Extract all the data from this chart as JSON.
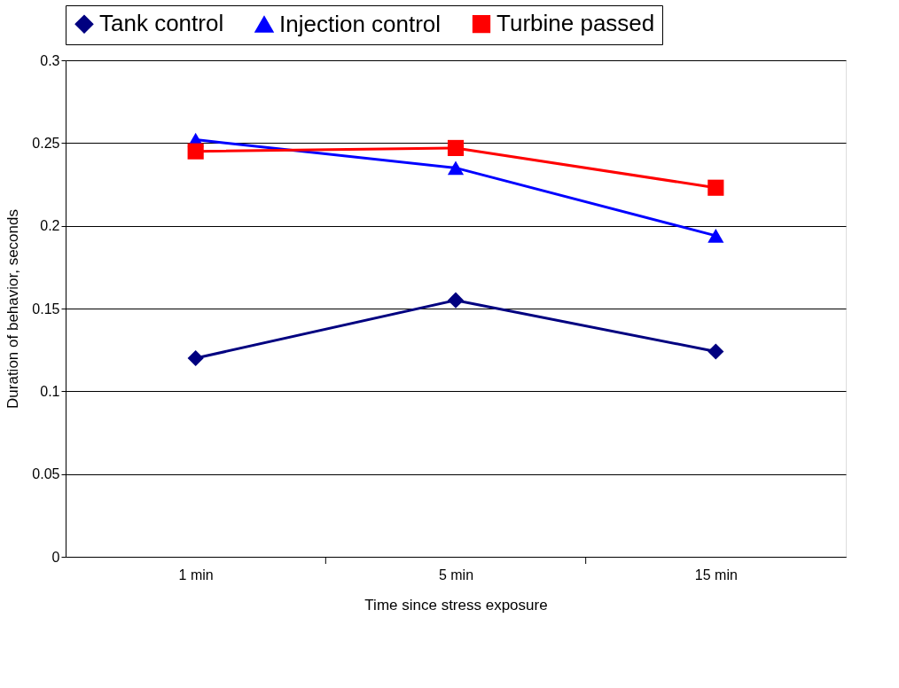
{
  "chart_data": {
    "type": "line",
    "xlabel": "Time since stress exposure",
    "ylabel": "Duration of behavior, seconds",
    "categories": [
      "1 min",
      "5 min",
      "15 min"
    ],
    "series": [
      {
        "name": "Tank control",
        "color": "#000080",
        "marker": "diamond",
        "values": [
          0.12,
          0.155,
          0.124
        ]
      },
      {
        "name": "Injection control",
        "color": "#0000ff",
        "marker": "triangle",
        "values": [
          0.252,
          0.235,
          0.194
        ]
      },
      {
        "name": "Turbine passed",
        "color": "#ff0000",
        "marker": "square",
        "values": [
          0.245,
          0.247,
          0.223
        ]
      }
    ],
    "ylim": [
      0,
      0.3
    ],
    "yticks": [
      0,
      0.05,
      0.1,
      0.15,
      0.2,
      0.25,
      0.3
    ],
    "grid": "y",
    "legend": "top",
    "line_style": "solid"
  }
}
